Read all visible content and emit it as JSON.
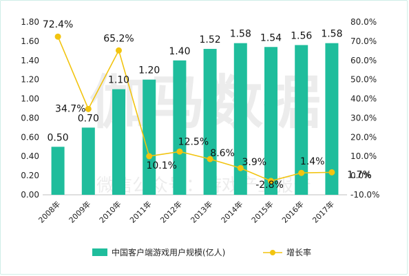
{
  "chart_data": {
    "type": "bar",
    "categories": [
      "2008年",
      "2009年",
      "2010年",
      "2011年",
      "2012年",
      "2013年",
      "2014年",
      "2015年",
      "2016年",
      "2017年"
    ],
    "series": [
      {
        "name": "中国客户端游戏用户规模(亿人)",
        "type": "bar",
        "axis": "left",
        "color": "#1fbd9c",
        "values": [
          0.5,
          0.7,
          1.1,
          1.2,
          1.4,
          1.52,
          1.58,
          1.54,
          1.56,
          1.58
        ],
        "labels": [
          "0.50",
          "0.70",
          "1.10",
          "1.20",
          "1.40",
          "1.52",
          "1.58",
          "1.54",
          "1.56",
          "1.58"
        ]
      },
      {
        "name": "增长率",
        "type": "line",
        "axis": "right",
        "color": "#f2c40f",
        "values": [
          72.4,
          34.7,
          65.2,
          10.1,
          12.5,
          8.6,
          3.9,
          -2.8,
          1.4,
          1.7
        ],
        "labels": [
          "72.4%",
          "34.7%",
          "65.2%",
          "10.1%",
          "12.5%",
          "8.6%",
          "3.9%",
          "-2.8%",
          "1.4%",
          "1.7%"
        ]
      }
    ],
    "y_left": {
      "min": 0,
      "max": 1.8,
      "step": 0.2,
      "tick_labels": [
        "0.00",
        "0.20",
        "0.40",
        "0.60",
        "0.80",
        "1.00",
        "1.20",
        "1.40",
        "1.60",
        "1.80"
      ]
    },
    "y_right": {
      "min": -10,
      "max": 80,
      "step": 10,
      "tick_labels": [
        "-10.0%",
        "0.0%",
        "10.0%",
        "20.0%",
        "30.0%",
        "40.0%",
        "50.0%",
        "60.0%",
        "70.0%",
        "80.0%"
      ]
    },
    "grid": false,
    "legend_position": "bottom",
    "watermark": {
      "main": "伽马数据",
      "sub": "微信公众号：游戏产业报告"
    }
  }
}
